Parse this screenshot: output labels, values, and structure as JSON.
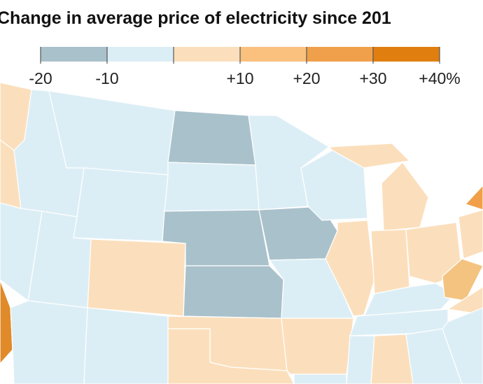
{
  "title": "Change in average price of electricity since 201",
  "legend": {
    "bins": [
      -20,
      -10,
      0,
      10,
      20,
      30,
      40
    ],
    "colors": [
      "#a9c1cb",
      "#dceef5",
      "#fbdfbc",
      "#f9c07e",
      "#f0a04a",
      "#e07f10"
    ],
    "ticks": [
      -20,
      {
        "value": -10,
        "label": "-10"
      },
      {
        "value": 10,
        "label": "+10"
      },
      {
        "value": 20,
        "label": "+20"
      },
      {
        "value": 30,
        "label": "+30"
      },
      {
        "value": 40,
        "label": "+40%"
      }
    ]
  }
}
